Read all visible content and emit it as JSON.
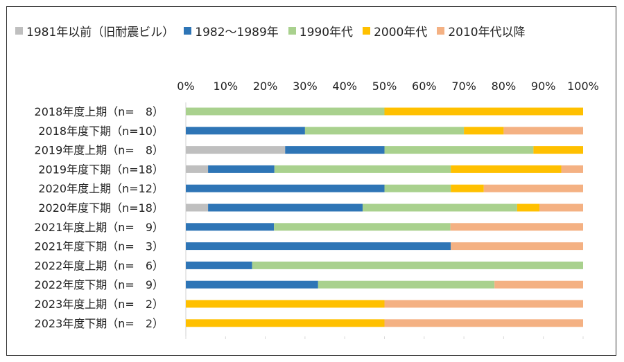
{
  "chart_data": {
    "type": "bar",
    "orientation": "horizontal",
    "stacked": "percent",
    "categories": [
      "2018年度上期（n=　8）",
      "2018年度下期（n=10）",
      "2019年度上期（n=　8）",
      "2019年度下期（n=18）",
      "2020年度上期（n=12）",
      "2020年度下期（n=18）",
      "2021年度上期（n=　9）",
      "2021年度下期（n=　3）",
      "2022年度上期（n=　6）",
      "2022年度下期（n=　9）",
      "2023年度上期（n=　2）",
      "2023年度下期（n=　2）"
    ],
    "series": [
      {
        "name": "1981年以前（旧耐震ビル）",
        "color": "#BFBFBF",
        "values": [
          0,
          0,
          25,
          5.6,
          0,
          5.6,
          0,
          0,
          0,
          0,
          0,
          0
        ]
      },
      {
        "name": "1982～1989年",
        "color": "#2E75B6",
        "values": [
          0,
          30,
          25,
          16.7,
          50,
          38.9,
          22.2,
          66.7,
          16.7,
          33.3,
          0,
          0
        ]
      },
      {
        "name": "1990年代",
        "color": "#A9D18E",
        "values": [
          50,
          40,
          37.5,
          44.4,
          16.7,
          38.9,
          44.4,
          0,
          83.3,
          44.4,
          0,
          0
        ]
      },
      {
        "name": "2000年代",
        "color": "#FFC000",
        "values": [
          50,
          10,
          12.5,
          27.8,
          8.3,
          5.6,
          0,
          0,
          0,
          0,
          50,
          50
        ]
      },
      {
        "name": "2010年代以降",
        "color": "#F4B183",
        "values": [
          0,
          20,
          0,
          5.5,
          25,
          11,
          33.4,
          33.3,
          0,
          22.3,
          50,
          50
        ]
      }
    ],
    "xlim": [
      0,
      100
    ],
    "x_ticks": [
      "0%",
      "10%",
      "20%",
      "30%",
      "40%",
      "50%",
      "60%",
      "70%",
      "80%",
      "90%",
      "100%"
    ],
    "grid": false,
    "legend_position": "top-left"
  }
}
